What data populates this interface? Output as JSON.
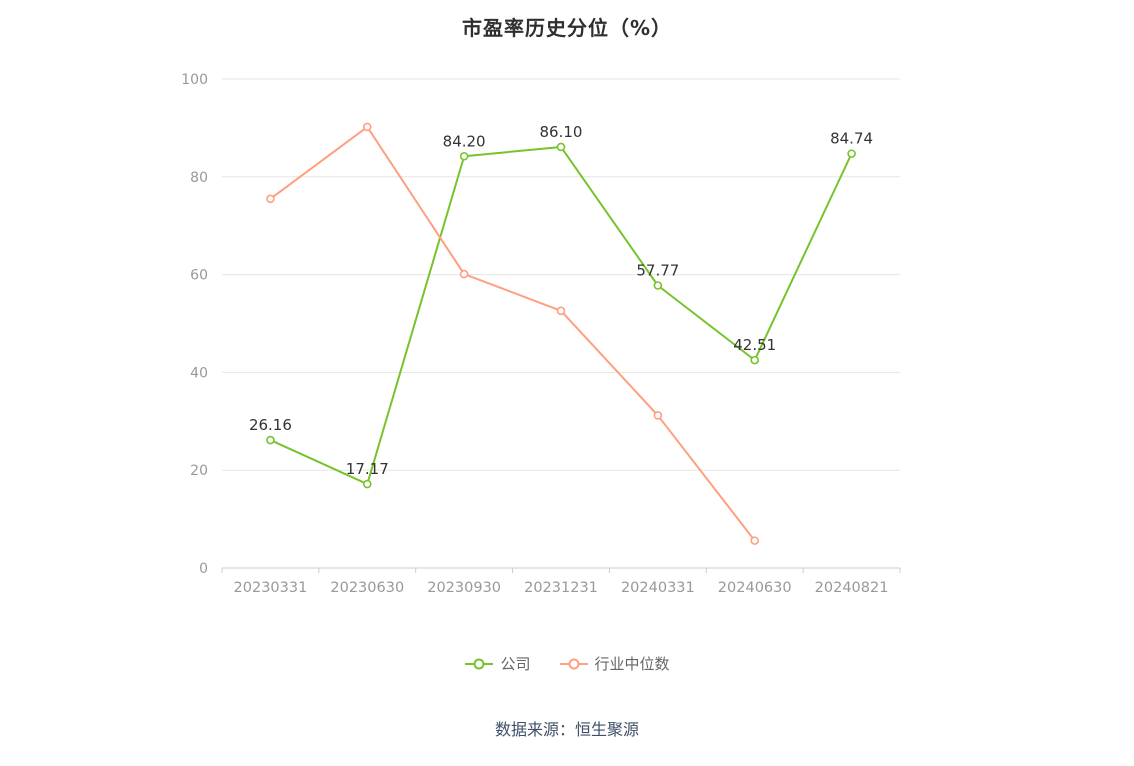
{
  "title": "市盈率历史分位（%）",
  "footer": "数据来源：恒生聚源",
  "legend": [
    {
      "label": "公司",
      "color": "#76c32c"
    },
    {
      "label": "行业中位数",
      "color": "#ff9f7f"
    }
  ],
  "colors": {
    "company_line": "#76c32c",
    "industry_line": "#ff9f7f",
    "grid": "#e6e6e6",
    "axis": "#cccccc",
    "tick_label": "#999999",
    "data_label": "#333333"
  },
  "chart_data": {
    "type": "line",
    "title": "市盈率历史分位（%）",
    "categories": [
      "20230331",
      "20230630",
      "20230930",
      "20231231",
      "20240331",
      "20240630",
      "20240821"
    ],
    "series": [
      {
        "name": "公司",
        "color": "#76c32c",
        "values": [
          26.16,
          17.17,
          84.2,
          86.1,
          57.77,
          42.51,
          84.74
        ],
        "labels": [
          "26.16",
          "17.17",
          "84.20",
          "86.10",
          "57.77",
          "42.51",
          "84.74"
        ]
      },
      {
        "name": "行业中位数",
        "color": "#ff9f7f",
        "values": [
          75.5,
          90.2,
          60.1,
          52.6,
          31.2,
          5.6,
          null
        ]
      }
    ],
    "xlabel": "",
    "ylabel": "",
    "ylim": [
      0,
      100
    ],
    "yticks": [
      0,
      20,
      40,
      60,
      80,
      100
    ],
    "grid": true,
    "legend_position": "bottom"
  }
}
